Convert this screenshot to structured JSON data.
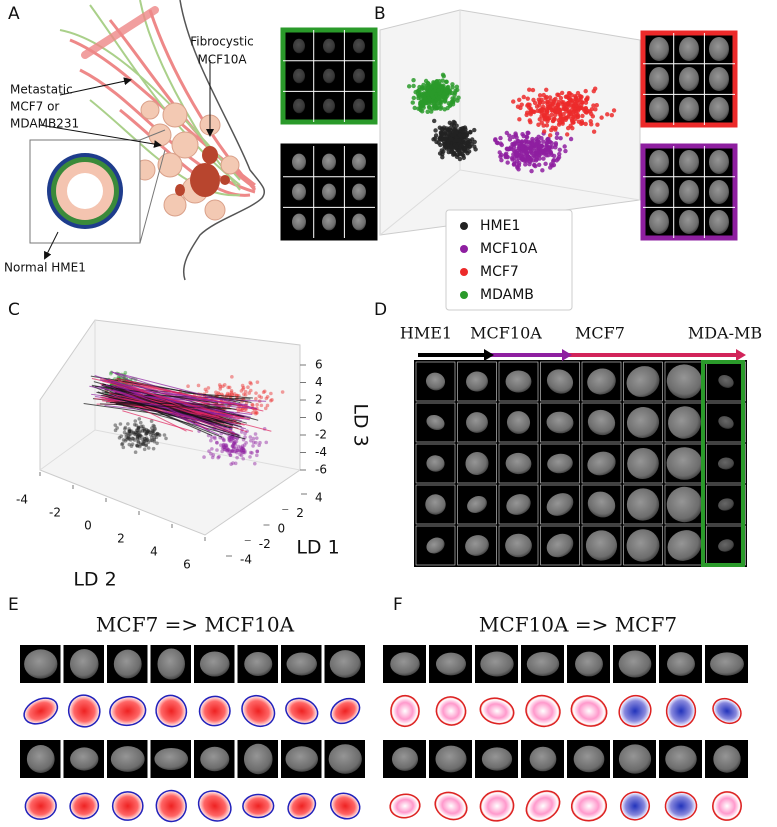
{
  "panel_a": {
    "label": "A",
    "fibrocystic": [
      "Fibrocystic",
      "MCF10A"
    ],
    "metastatic": [
      "Metastatic",
      "MCF7 or",
      "MDAMB231"
    ],
    "normal": "Normal HME1"
  },
  "panel_b": {
    "label": "B",
    "legend": [
      {
        "name": "HME1",
        "color": "#222222"
      },
      {
        "name": "MCF10A",
        "color": "#8e1fa0"
      },
      {
        "name": "MCF7",
        "color": "#ec2a2a"
      },
      {
        "name": "MDAMB",
        "color": "#2a9a2a"
      }
    ]
  },
  "panel_c": {
    "label": "C",
    "xlabel": "LD 2",
    "ylabel": "LD 1",
    "zlabel": "LD 3",
    "xticks": [
      -4,
      -2,
      0,
      2,
      4,
      6
    ],
    "yticks": [
      -4,
      -2,
      0,
      2,
      4
    ],
    "zticks": [
      -6,
      -4,
      -2,
      0,
      2,
      4,
      6
    ]
  },
  "panel_d": {
    "label": "D",
    "stages": [
      "HME1",
      "MCF10A",
      "MCF7",
      "MDA-MB"
    ]
  },
  "panel_e": {
    "label": "E",
    "title": "MCF7 => MCF10A"
  },
  "panel_f": {
    "label": "F",
    "title": "MCF10A => MCF7"
  }
}
